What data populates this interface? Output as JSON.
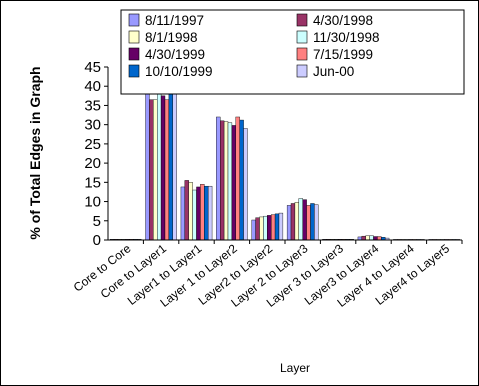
{
  "chart_data": {
    "type": "bar",
    "title": "",
    "xlabel": "Layer",
    "ylabel": "% of Total Edges in Graph",
    "ylim": [
      0,
      45
    ],
    "yticks": [
      0,
      5,
      10,
      15,
      20,
      25,
      30,
      35,
      40,
      45
    ],
    "grid": false,
    "legend_position": "top",
    "categories": [
      "Core to Core",
      "Core to Layer1",
      "Layer1 to Layer1",
      "Layer 1 to Layer2",
      "Layer2 to Layer2",
      "Layer 2 to Layer3",
      "Layer 3 to Layer3",
      "Layer3 to Layer4",
      "Layer 4 to Layer4",
      "Layer4 to Layer5"
    ],
    "series": [
      {
        "name": "8/11/1997",
        "color": "#9999ff",
        "values": [
          0.2,
          38.5,
          13.8,
          32.0,
          5.2,
          9.0,
          0.2,
          0.8,
          0.1,
          0.05
        ]
      },
      {
        "name": "4/30/1998",
        "color": "#993366",
        "values": [
          0.2,
          36.5,
          15.5,
          31.0,
          5.8,
          9.5,
          0.2,
          1.0,
          0.1,
          0.05
        ]
      },
      {
        "name": "8/1/1998",
        "color": "#ffffcc",
        "values": [
          0.2,
          36.5,
          15.0,
          30.8,
          6.0,
          9.8,
          0.2,
          1.1,
          0.1,
          0.05
        ]
      },
      {
        "name": "11/30/1998",
        "color": "#ccffff",
        "values": [
          0.2,
          39.0,
          13.0,
          30.5,
          6.2,
          10.8,
          0.2,
          1.1,
          0.1,
          0.05
        ]
      },
      {
        "name": "4/30/1999",
        "color": "#660066",
        "values": [
          0.2,
          37.5,
          13.8,
          29.8,
          6.4,
          10.5,
          0.2,
          0.9,
          0.1,
          0.05
        ]
      },
      {
        "name": "7/15/1999",
        "color": "#ff8080",
        "values": [
          0.2,
          36.5,
          14.5,
          32.0,
          6.6,
          9.0,
          0.2,
          0.9,
          0.1,
          0.05
        ]
      },
      {
        "name": "10/10/1999",
        "color": "#0066cc",
        "values": [
          0.2,
          40.5,
          14.0,
          31.2,
          6.8,
          9.5,
          0.2,
          0.7,
          0.1,
          0.05
        ]
      },
      {
        "name": "Jun-00",
        "color": "#ccccff",
        "values": [
          0.2,
          42.0,
          14.0,
          29.0,
          7.0,
          9.2,
          0.2,
          0.5,
          0.1,
          0.05
        ]
      }
    ]
  }
}
